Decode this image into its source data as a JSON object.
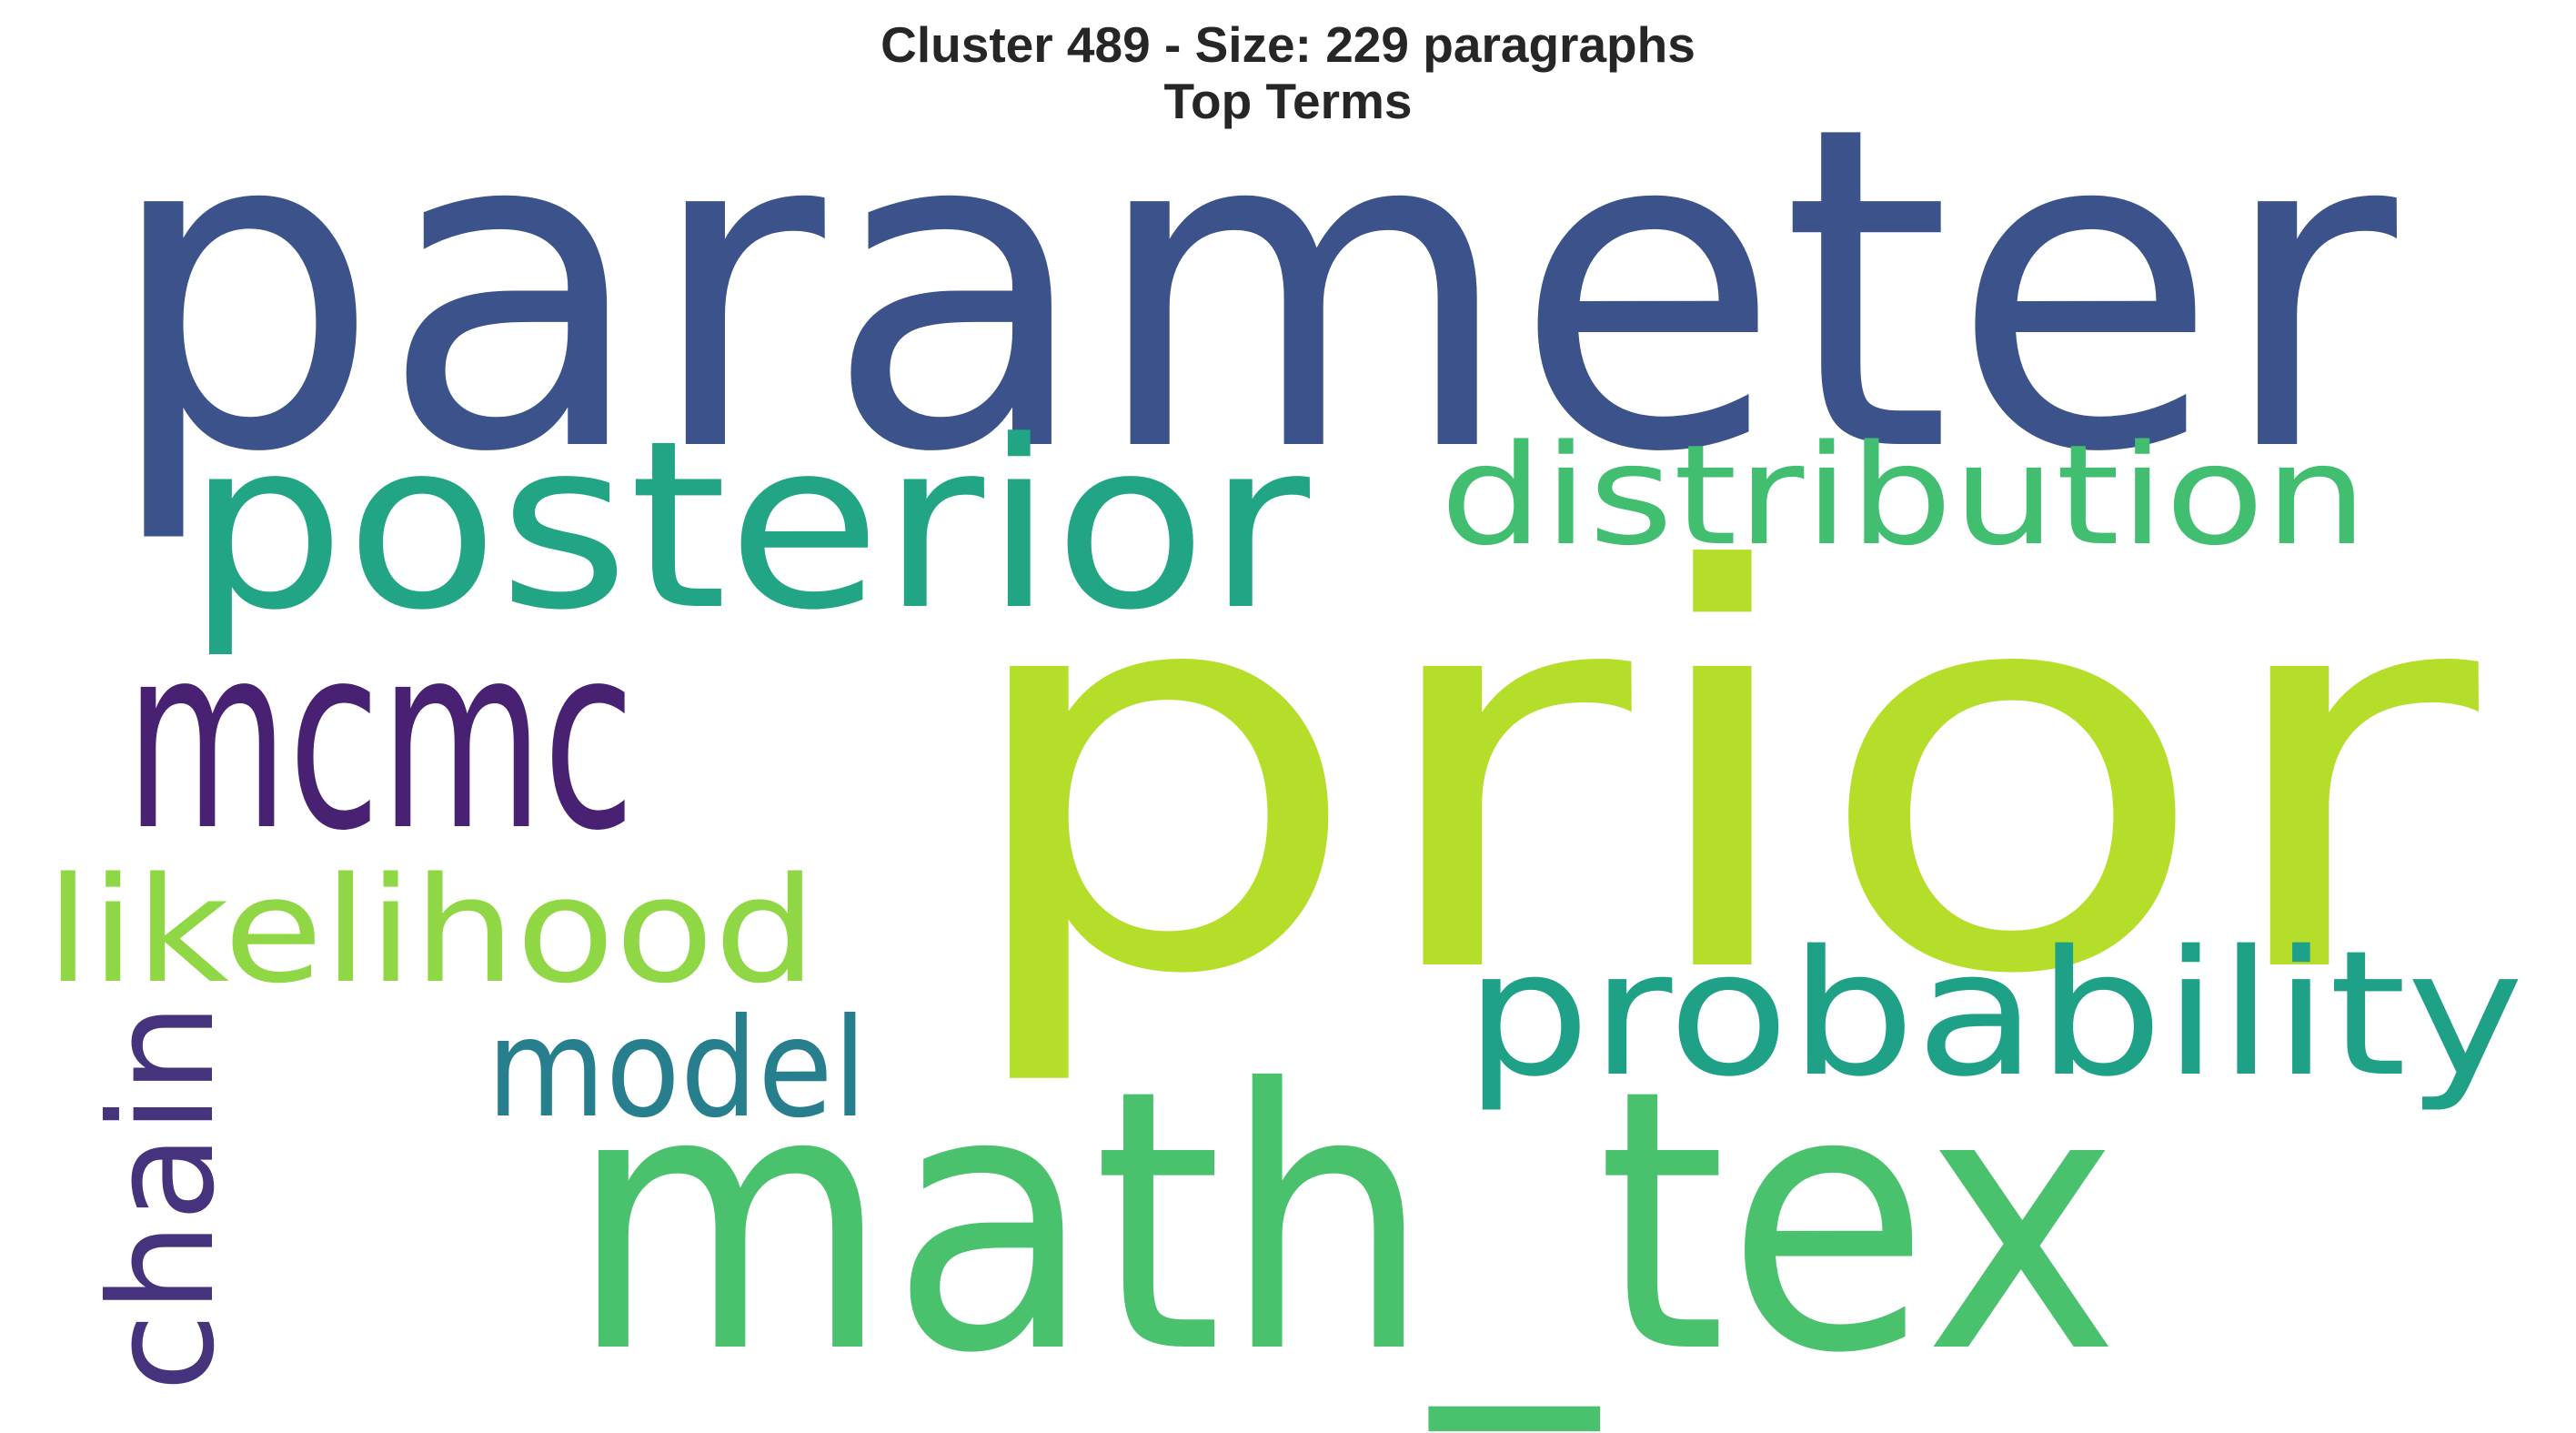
{
  "title": {
    "line1": "Cluster 489 - Size: 229 paragraphs",
    "line2": "Top Terms"
  },
  "words": [
    {
      "text": "parameter",
      "color": "#3b528b",
      "rotated": false
    },
    {
      "text": "prior",
      "color": "#b5de2b",
      "rotated": false
    },
    {
      "text": "math_tex",
      "color": "#4ac16d",
      "rotated": false
    },
    {
      "text": "posterior",
      "color": "#21a585",
      "rotated": false
    },
    {
      "text": "distribution",
      "color": "#42be71",
      "rotated": false
    },
    {
      "text": "mcmc",
      "color": "#482173",
      "rotated": false
    },
    {
      "text": "probability",
      "color": "#1fa187",
      "rotated": false
    },
    {
      "text": "likelihood",
      "color": "#8fd744",
      "rotated": false
    },
    {
      "text": "model",
      "color": "#277f8e",
      "rotated": false
    },
    {
      "text": "chain",
      "color": "#46337e",
      "rotated": true
    }
  ]
}
